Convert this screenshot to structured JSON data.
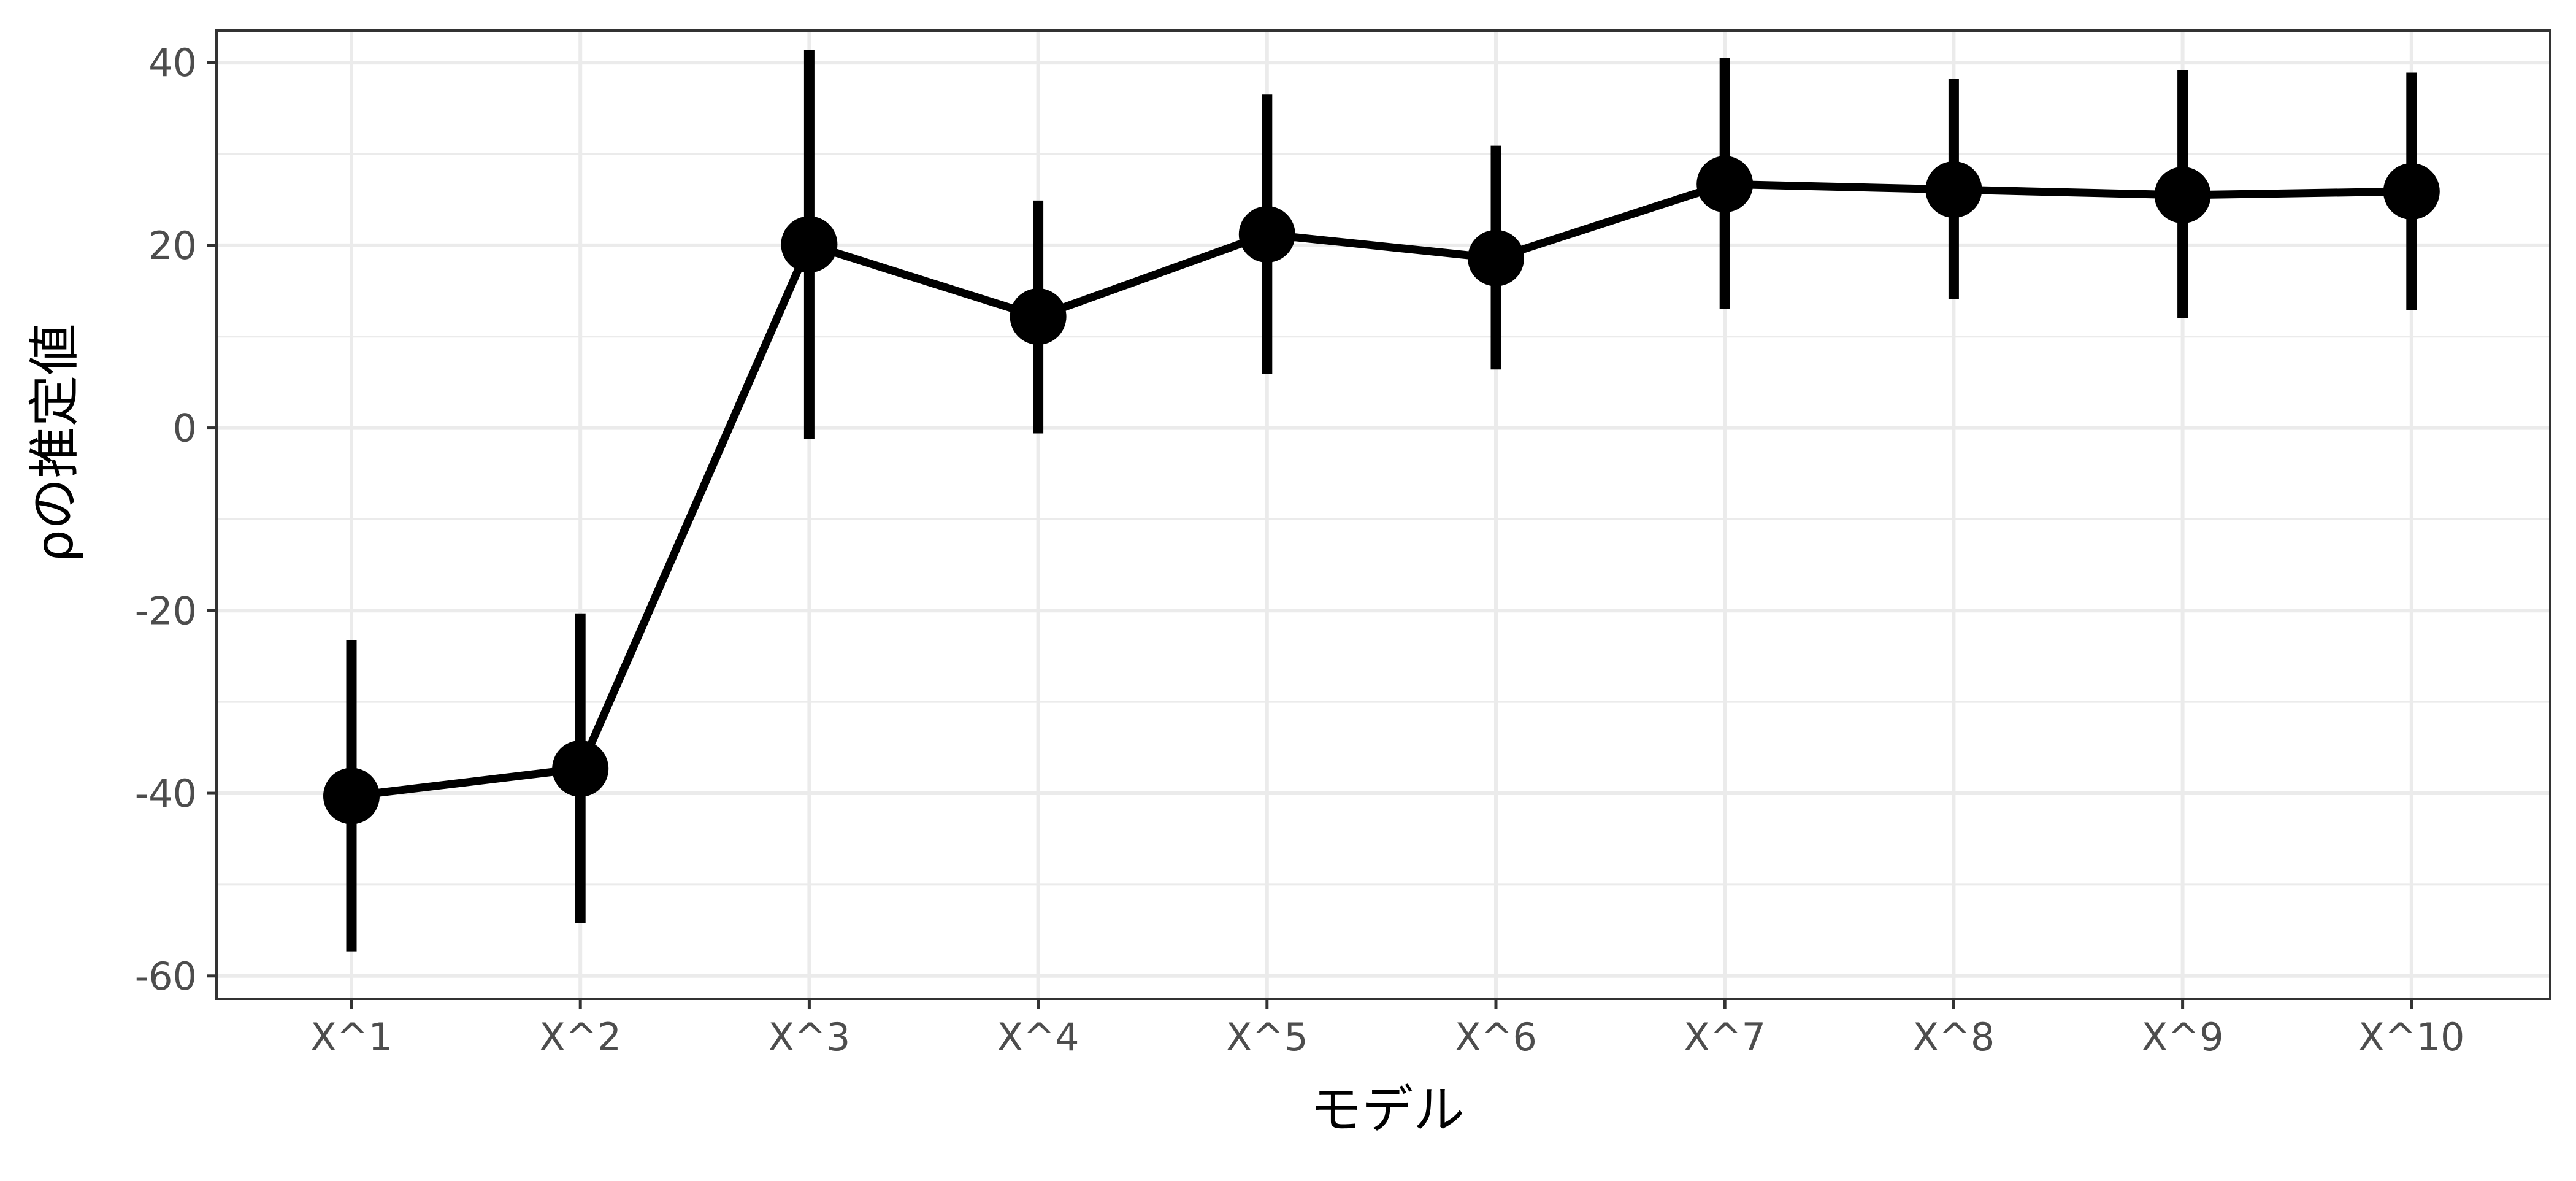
{
  "chart_data": {
    "type": "line",
    "title": "",
    "xlabel": "モデル",
    "ylabel": "ρの推定値",
    "categories": [
      "X^1",
      "X^2",
      "X^3",
      "X^4",
      "X^5",
      "X^6",
      "X^7",
      "X^8",
      "X^9",
      "X^10"
    ],
    "series": [
      {
        "values": [
          -40.3,
          -37.3,
          20.1,
          12.2,
          21.2,
          18.6,
          26.7,
          26.1,
          25.5,
          25.9
        ],
        "error_low": [
          -57.3,
          -54.2,
          -1.2,
          -0.6,
          5.9,
          6.4,
          13.0,
          14.1,
          12.0,
          12.9
        ],
        "error_high": [
          -23.2,
          -20.3,
          41.4,
          24.9,
          36.5,
          30.9,
          40.5,
          38.2,
          39.2,
          38.9
        ]
      }
    ],
    "y_ticks": [
      "40",
      "20",
      "0",
      "-20",
      "-40",
      "-60"
    ],
    "ylim": [
      -62.5,
      43.5
    ],
    "grid": true,
    "legend": "none",
    "colors": {
      "series": "#000000",
      "grid": "#ebebeb",
      "panel_border": "#333333",
      "tick_text": "#4d4d4d"
    }
  }
}
